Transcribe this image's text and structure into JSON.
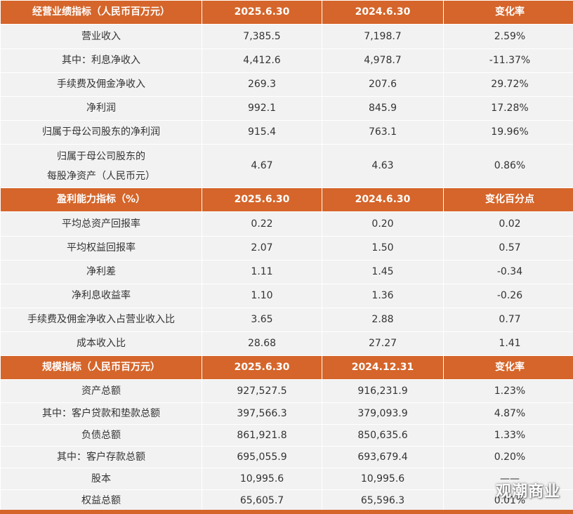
{
  "sections": [
    {
      "header": [
        "经营业绩指标（人民币百万元）",
        "2025.6.30",
        "2024.6.30",
        "变化率"
      ],
      "rows": [
        [
          "营业收入",
          "7,385.5",
          "7,198.7",
          "2.59%"
        ],
        [
          "其中：利息净收入",
          "4,412.6",
          "4,978.7",
          "-11.37%"
        ],
        [
          "手续费及佣金净收入",
          "269.3",
          "207.6",
          "29.72%"
        ],
        [
          "净利润",
          "992.1",
          "845.9",
          "17.28%"
        ],
        [
          "归属于母公司股东的净利润",
          "915.4",
          "763.1",
          "19.96%"
        ],
        [
          "归属于母公司股东的|每股净资产（人民币元）",
          "4.67",
          "4.63",
          "0.86%"
        ]
      ]
    },
    {
      "header": [
        "盈利能力指标（%）",
        "2025.6.30",
        "2024.6.30",
        "变化百分点"
      ],
      "rows": [
        [
          "平均总资产回报率",
          "0.22",
          "0.20",
          "0.02"
        ],
        [
          "平均权益回报率",
          "2.07",
          "1.50",
          "0.57"
        ],
        [
          "净利差",
          "1.11",
          "1.45",
          "-0.34"
        ],
        [
          "净利息收益率",
          "1.10",
          "1.36",
          "-0.26"
        ],
        [
          "手续费及佣金净收入占营业收入比",
          "3.65",
          "2.88",
          "0.77"
        ],
        [
          "成本收入比",
          "28.68",
          "27.27",
          "1.41"
        ]
      ]
    },
    {
      "header": [
        "规模指标（人民币百万元）",
        "2025.6.30",
        "2024.12.31",
        "变化率"
      ],
      "rows": [
        [
          "资产总额",
          "927,527.5",
          "916,231.9",
          "1.23%"
        ],
        [
          "其中：客户贷款和垫款总额",
          "397,566.3",
          "379,093.9",
          "4.87%"
        ],
        [
          "负债总额",
          "861,921.8",
          "850,635.6",
          "1.33%"
        ],
        [
          "其中：客户存款总额",
          "695,055.9",
          "693,679.4",
          "0.20%"
        ],
        [
          "股本",
          "10,995.6",
          "10,995.6",
          "——"
        ],
        [
          "权益总额",
          "65,605.7",
          "65,596.3",
          "0.01%"
        ]
      ]
    }
  ],
  "watermark": "观潮商业"
}
